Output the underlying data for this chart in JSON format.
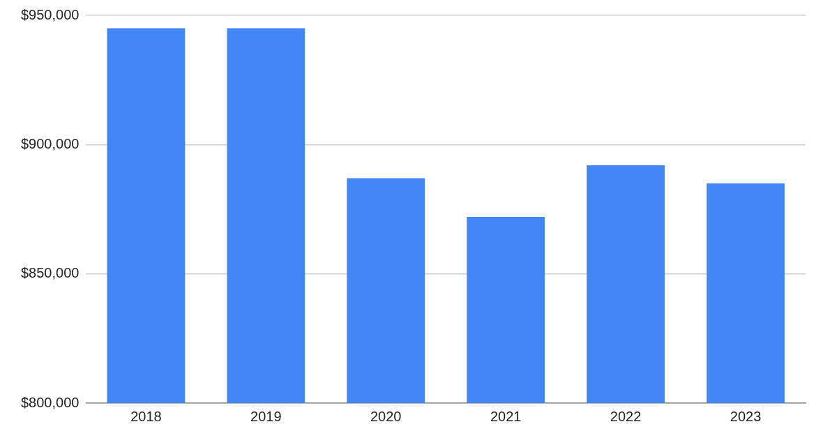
{
  "chart_data": {
    "type": "bar",
    "categories": [
      "2018",
      "2019",
      "2020",
      "2021",
      "2022",
      "2023"
    ],
    "values": [
      945000,
      945000,
      887000,
      872000,
      892000,
      885000
    ],
    "color": "#4285f4",
    "ylim": [
      800000,
      950000
    ],
    "yticks": [
      {
        "value": 800000,
        "label": "$800,000"
      },
      {
        "value": 850000,
        "label": "$850,000"
      },
      {
        "value": 900000,
        "label": "$900,000"
      },
      {
        "value": 950000,
        "label": "$950,000"
      }
    ],
    "grid": "y"
  }
}
